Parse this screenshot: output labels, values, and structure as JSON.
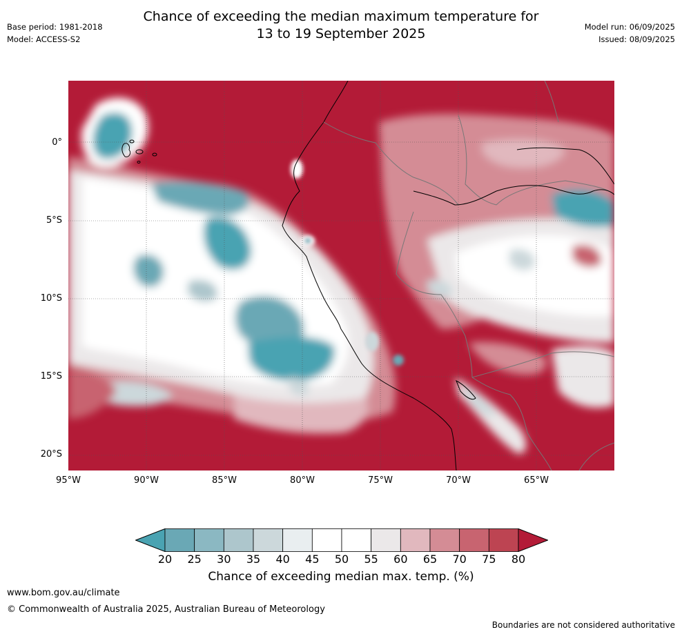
{
  "title_line1": "Chance of exceeding the median maximum temperature for",
  "title_line2": "13 to 19 September 2025",
  "base_period": "Base period: 1981-2018",
  "model": "Model: ACCESS-S2",
  "model_run": "Model run: 06/09/2025",
  "issued": "Issued: 08/09/2025",
  "lat_labels": [
    "0°",
    "5°S",
    "10°S",
    "15°S",
    "20°S"
  ],
  "lon_labels": [
    "95°W",
    "90°W",
    "85°W",
    "80°W",
    "75°W",
    "70°W",
    "65°W"
  ],
  "colorbar": {
    "ticks": [
      "20",
      "25",
      "30",
      "35",
      "40",
      "45",
      "50",
      "55",
      "60",
      "65",
      "70",
      "75",
      "80"
    ],
    "colors": [
      "#4aa3b2",
      "#6aa8b5",
      "#8bb8c2",
      "#adc6cc",
      "#ccd8db",
      "#e9eef0",
      "#ffffff",
      "#ffffff",
      "#ebe8e9",
      "#e1b8be",
      "#d48c95",
      "#c86470",
      "#bd4452",
      "#b31b37"
    ],
    "label": "Chance of exceeding median max. temp. (%)"
  },
  "footer_url": "www.bom.gov.au/climate",
  "copyright": "© Commonwealth of Australia 2025, Australian Bureau of Meteorology",
  "disclaimer": "Boundaries are not considered authoritative"
}
